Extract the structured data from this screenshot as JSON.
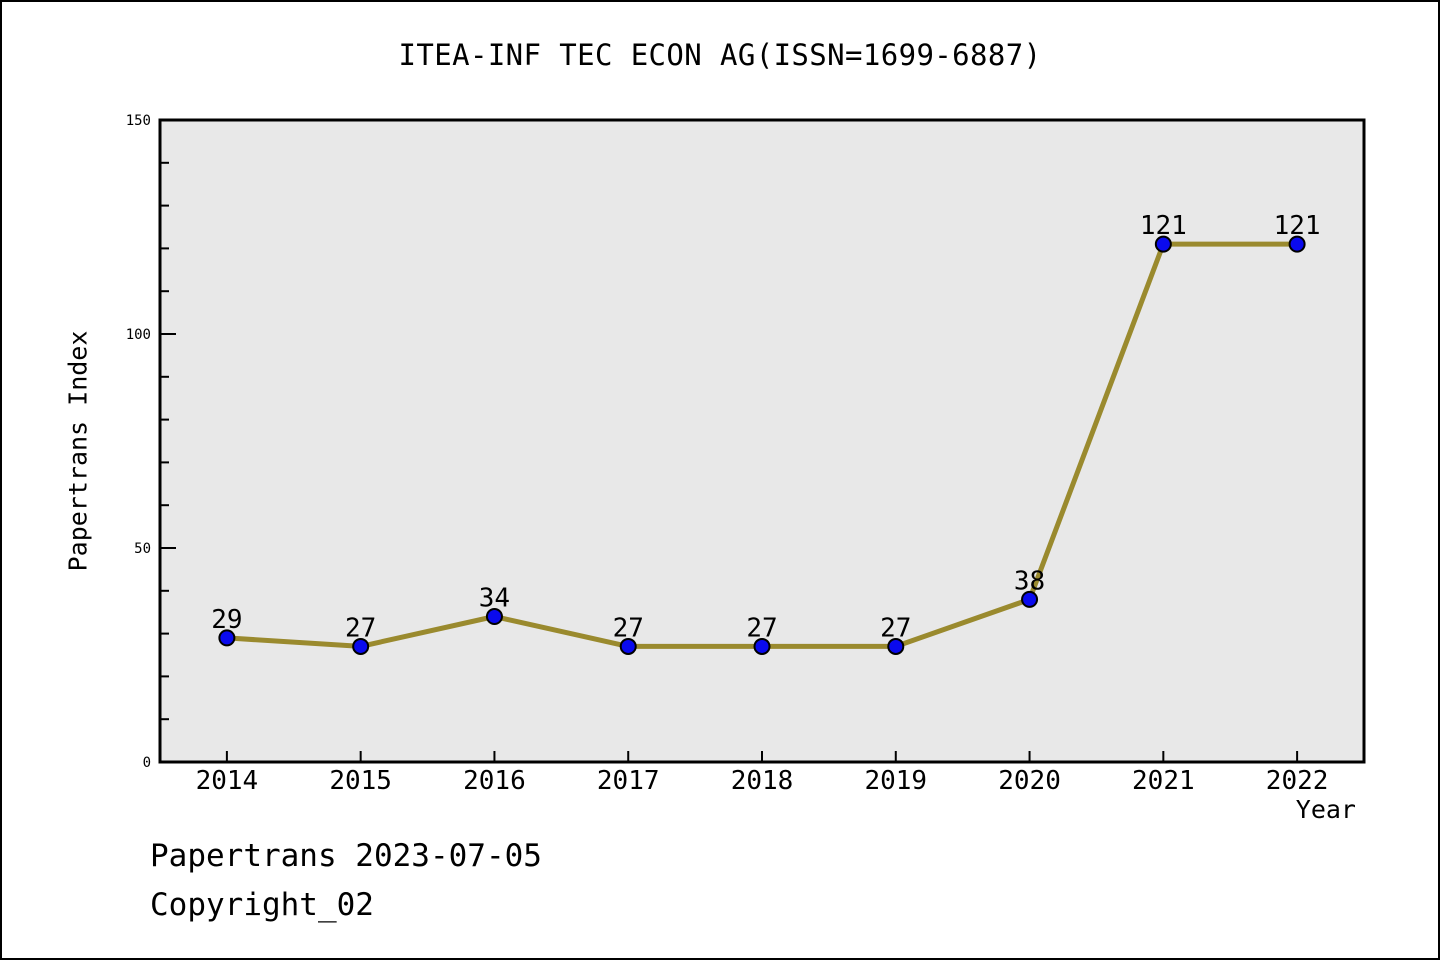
{
  "figure": {
    "footer_line1": "Papertrans 2023-07-05",
    "footer_line2": "Copyright_02"
  },
  "chart_data": {
    "type": "line",
    "title": "ITEA-INF TEC ECON AG(ISSN=1699-6887)",
    "xlabel": "Year",
    "ylabel": "Papertrans Index",
    "x": [
      2014,
      2015,
      2016,
      2017,
      2018,
      2019,
      2020,
      2021,
      2022
    ],
    "x_tick_labels": [
      "2014",
      "2015",
      "2016",
      "2017",
      "2018",
      "2019",
      "2020",
      "2021",
      "2022"
    ],
    "values": [
      29,
      27,
      34,
      27,
      27,
      27,
      38,
      121,
      121
    ],
    "point_labels": [
      "29",
      "27",
      "34",
      "27",
      "27",
      "27",
      "38",
      "121",
      "121"
    ],
    "xlim": [
      2013.5,
      2022.5
    ],
    "ylim": [
      0,
      150
    ],
    "yticks_major": [
      0,
      50,
      100,
      150
    ],
    "ytick_labels": [
      "0",
      "50",
      "100",
      "150"
    ],
    "ytick_minor_step": 10,
    "grid": false,
    "legend": "none",
    "styles": {
      "line_color": "#9a8a2e",
      "line_width": 5,
      "marker_color": "#0a0aee",
      "marker_edge_color": "#000000",
      "marker_radius": 7.5,
      "plot_bg": "#e8e8e8",
      "figure_bg": "#ffffff",
      "spine_color": "#000000",
      "text_color": "#000000"
    }
  }
}
